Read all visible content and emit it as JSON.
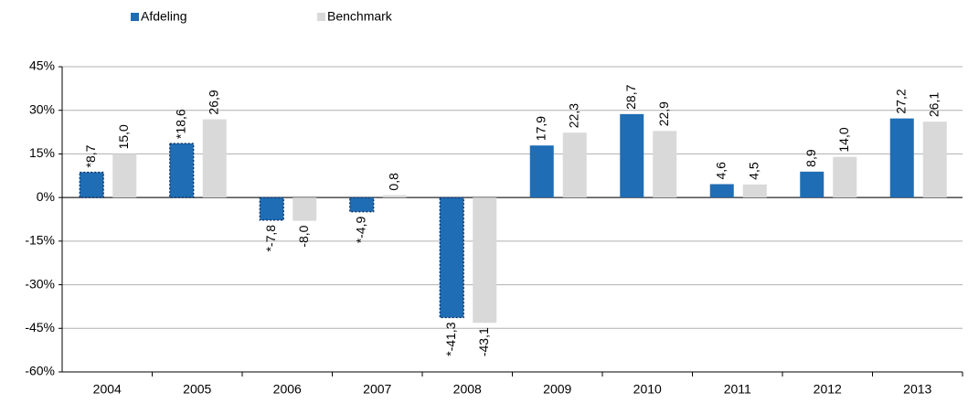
{
  "chart_data": {
    "type": "bar",
    "categories": [
      "2004",
      "2005",
      "2006",
      "2007",
      "2008",
      "2009",
      "2010",
      "2011",
      "2012",
      "2013"
    ],
    "series": [
      {
        "name": "Afdeling",
        "color": "#1f6db4",
        "values": [
          8.7,
          18.6,
          -7.8,
          -4.9,
          -41.3,
          17.9,
          28.7,
          4.6,
          8.9,
          27.2
        ],
        "value_labels": [
          "*8,7",
          "*18,6",
          "*-7,8",
          "*-4,9",
          "*-41,3",
          "17,9",
          "28,7",
          "4,6",
          "8,9",
          "27,2"
        ],
        "dotted_border": [
          true,
          true,
          true,
          true,
          true,
          false,
          false,
          false,
          false,
          false
        ]
      },
      {
        "name": "Benchmark",
        "color": "#d9d9d9",
        "values": [
          15.0,
          26.9,
          -8.0,
          0.8,
          -43.1,
          22.3,
          22.9,
          4.5,
          14.0,
          26.1
        ],
        "value_labels": [
          "15,0",
          "26,9",
          "-8,0",
          "0,8",
          "-43,1",
          "22,3",
          "22,9",
          "4,5",
          "14,0",
          "26,1"
        ]
      }
    ],
    "ylim": [
      -60,
      45
    ],
    "yticks": [
      {
        "value": -60,
        "label": "-60%"
      },
      {
        "value": -45,
        "label": "-45%"
      },
      {
        "value": -30,
        "label": "-30%"
      },
      {
        "value": -15,
        "label": "-15%"
      },
      {
        "value": 0,
        "label": "0%"
      },
      {
        "value": 15,
        "label": "15%"
      },
      {
        "value": 30,
        "label": "30%"
      },
      {
        "value": 45,
        "label": "45%"
      }
    ],
    "grid": true,
    "legend": "top-left"
  }
}
